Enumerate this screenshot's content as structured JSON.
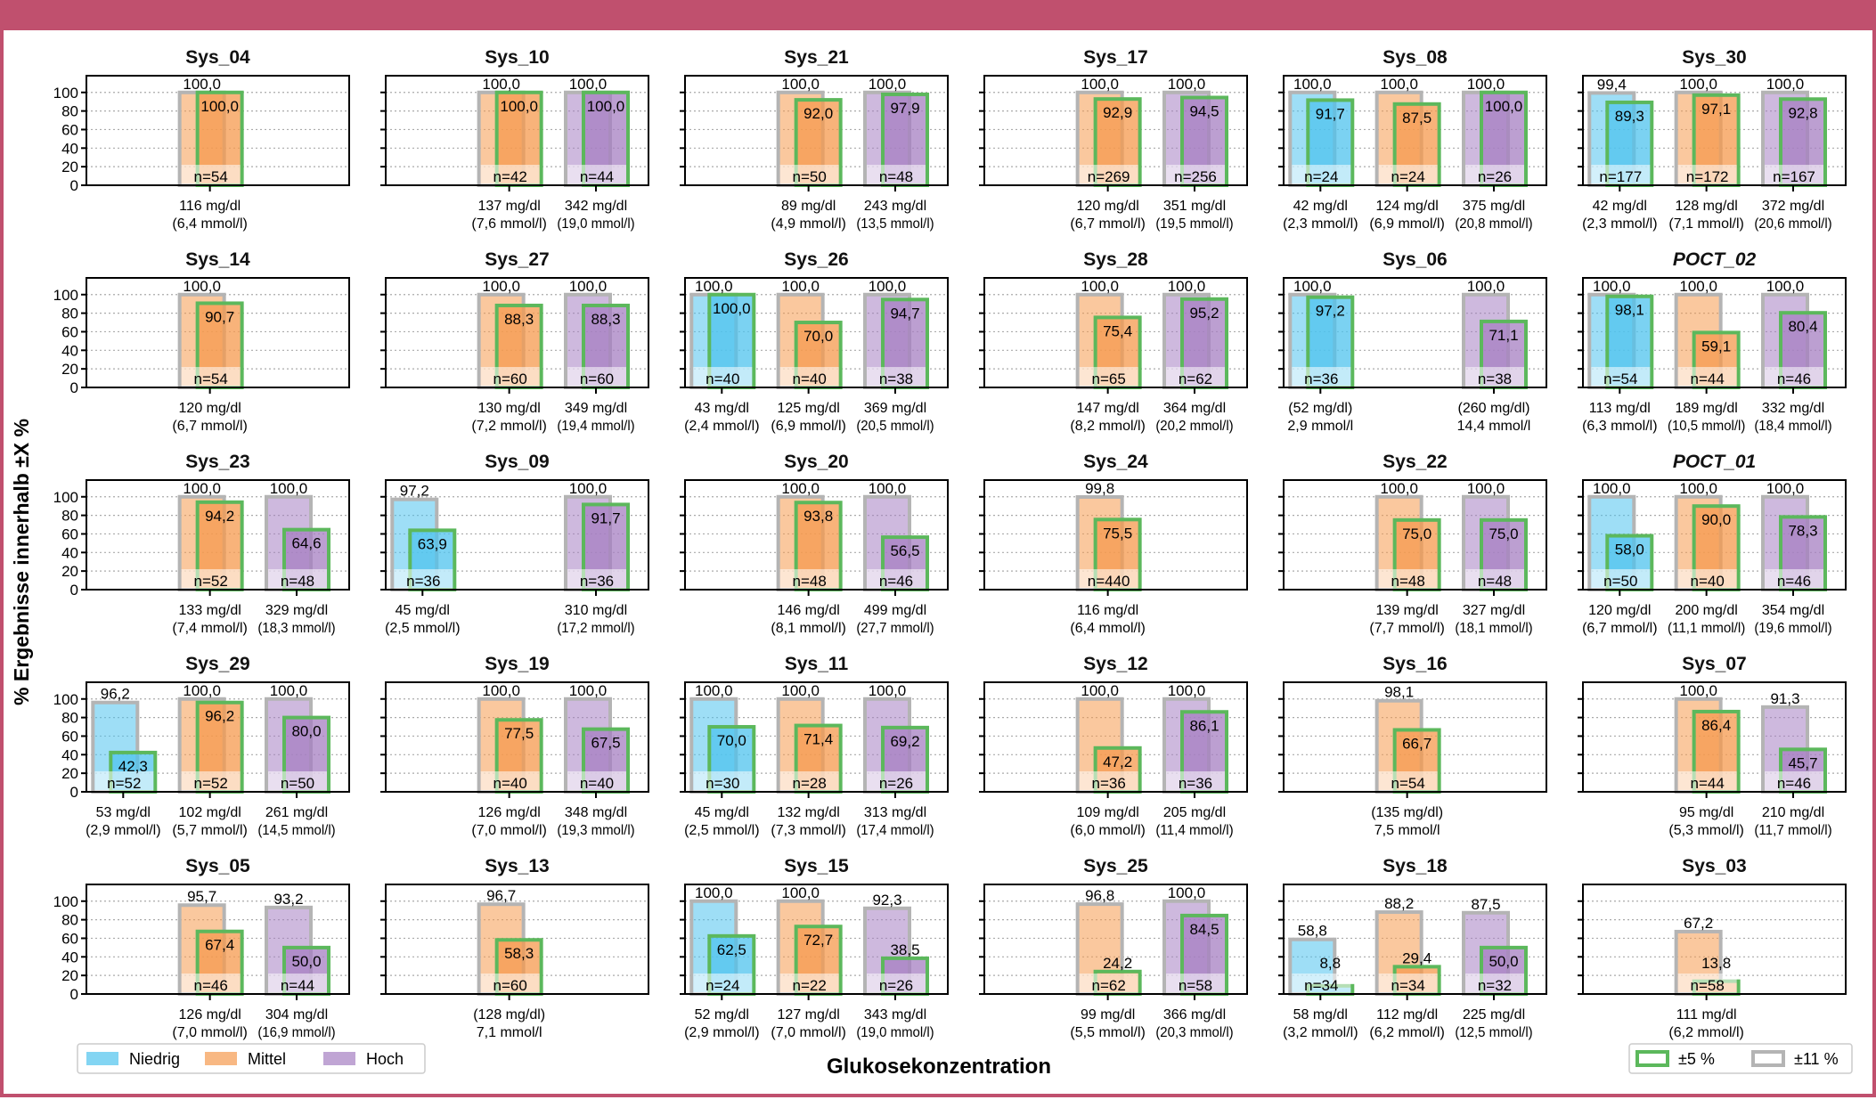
{
  "chart_data": {
    "type": "bar",
    "ylabel": "% Ergebnisse innerhalb ±X %",
    "xlabel": "Glukosekonzentration",
    "ylim": [
      0,
      118
    ],
    "yticks": [
      0,
      20,
      40,
      60,
      80,
      100
    ],
    "grid": "horizontal dotted",
    "categories": [
      "Niedrig",
      "Mittel",
      "Hoch"
    ],
    "category_colors": {
      "Niedrig": "#4fc3ee",
      "Mittel": "#f59a4e",
      "Hoch": "#a57fc2"
    },
    "tolerance_legend": [
      {
        "name": "±5 %",
        "edge_color": "#5cb85c"
      },
      {
        "name": "±11 %",
        "edge_color": "#b4b4b4"
      }
    ],
    "panels": [
      {
        "title": "Sys_04",
        "bars": [
          {
            "category": "Mittel",
            "pct_11": 100.0,
            "pct_5": 100.0,
            "n": "n=54",
            "label": [
              "116 mg/dl",
              "(6,4 mmol/l)"
            ]
          }
        ]
      },
      {
        "title": "Sys_10",
        "bars": [
          {
            "category": "Mittel",
            "pct_11": 100.0,
            "pct_5": 100.0,
            "n": "n=42",
            "label": [
              "137 mg/dl",
              "(7,6 mmol/l)"
            ]
          },
          {
            "category": "Hoch",
            "pct_11": 100.0,
            "pct_5": 100.0,
            "n": "n=44",
            "label": [
              "342 mg/dl",
              "(19,0 mmol/l)"
            ]
          }
        ]
      },
      {
        "title": "Sys_21",
        "bars": [
          {
            "category": "Mittel",
            "pct_11": 100.0,
            "pct_5": 92.0,
            "n": "n=50",
            "label": [
              "89 mg/dl",
              "(4,9 mmol/l)"
            ]
          },
          {
            "category": "Hoch",
            "pct_11": 100.0,
            "pct_5": 97.9,
            "n": "n=48",
            "label": [
              "243 mg/dl",
              "(13,5 mmol/l)"
            ]
          }
        ]
      },
      {
        "title": "Sys_17",
        "bars": [
          {
            "category": "Mittel",
            "pct_11": 100.0,
            "pct_5": 92.9,
            "n": "n=269",
            "label": [
              "120 mg/dl",
              "(6,7 mmol/l)"
            ]
          },
          {
            "category": "Hoch",
            "pct_11": 100.0,
            "pct_5": 94.5,
            "n": "n=256",
            "label": [
              "351 mg/dl",
              "(19,5 mmol/l)"
            ]
          }
        ]
      },
      {
        "title": "Sys_08",
        "bars": [
          {
            "category": "Niedrig",
            "pct_11": 100.0,
            "pct_5": 91.7,
            "n": "n=24",
            "label": [
              "42 mg/dl",
              "(2,3 mmol/l)"
            ]
          },
          {
            "category": "Mittel",
            "pct_11": 100.0,
            "pct_5": 87.5,
            "n": "n=24",
            "label": [
              "124 mg/dl",
              "(6,9 mmol/l)"
            ]
          },
          {
            "category": "Hoch",
            "pct_11": 100.0,
            "pct_5": 100.0,
            "n": "n=26",
            "label": [
              "375 mg/dl",
              "(20,8 mmol/l)"
            ]
          }
        ]
      },
      {
        "title": "Sys_30",
        "bars": [
          {
            "category": "Niedrig",
            "pct_11": 99.4,
            "pct_5": 89.3,
            "n": "n=177",
            "label": [
              "42 mg/dl",
              "(2,3 mmol/l)"
            ]
          },
          {
            "category": "Mittel",
            "pct_11": 100.0,
            "pct_5": 97.1,
            "n": "n=172",
            "label": [
              "128 mg/dl",
              "(7,1 mmol/l)"
            ]
          },
          {
            "category": "Hoch",
            "pct_11": 100.0,
            "pct_5": 92.8,
            "n": "n=167",
            "label": [
              "372 mg/dl",
              "(20,6 mmol/l)"
            ]
          }
        ]
      },
      {
        "title": "Sys_14",
        "bars": [
          {
            "category": "Mittel",
            "pct_11": 100.0,
            "pct_5": 90.7,
            "n": "n=54",
            "label": [
              "120 mg/dl",
              "(6,7 mmol/l)"
            ]
          }
        ]
      },
      {
        "title": "Sys_27",
        "bars": [
          {
            "category": "Mittel",
            "pct_11": 100.0,
            "pct_5": 88.3,
            "n": "n=60",
            "label": [
              "130 mg/dl",
              "(7,2 mmol/l)"
            ]
          },
          {
            "category": "Hoch",
            "pct_11": 100.0,
            "pct_5": 88.3,
            "n": "n=60",
            "label": [
              "349 mg/dl",
              "(19,4 mmol/l)"
            ]
          }
        ]
      },
      {
        "title": "Sys_26",
        "bars": [
          {
            "category": "Niedrig",
            "pct_11": 100.0,
            "pct_5": 100.0,
            "n": "n=40",
            "label": [
              "43 mg/dl",
              "(2,4 mmol/l)"
            ]
          },
          {
            "category": "Mittel",
            "pct_11": 100.0,
            "pct_5": 70.0,
            "n": "n=40",
            "label": [
              "125 mg/dl",
              "(6,9 mmol/l)"
            ]
          },
          {
            "category": "Hoch",
            "pct_11": 100.0,
            "pct_5": 94.7,
            "n": "n=38",
            "label": [
              "369 mg/dl",
              "(20,5 mmol/l)"
            ]
          }
        ]
      },
      {
        "title": "Sys_28",
        "bars": [
          {
            "category": "Mittel",
            "pct_11": 100.0,
            "pct_5": 75.4,
            "n": "n=65",
            "label": [
              "147 mg/dl",
              "(8,2 mmol/l)"
            ]
          },
          {
            "category": "Hoch",
            "pct_11": 100.0,
            "pct_5": 95.2,
            "n": "n=62",
            "label": [
              "364 mg/dl",
              "(20,2 mmol/l)"
            ]
          }
        ]
      },
      {
        "title": "Sys_06",
        "bars": [
          {
            "category": "Niedrig",
            "pct_11": 100.0,
            "pct_5": 97.2,
            "n": "n=36",
            "label": [
              "(52 mg/dl)",
              "2,9 mmol/l"
            ]
          },
          {
            "category": "Hoch",
            "pct_11": 100.0,
            "pct_5": 71.1,
            "n": "n=38",
            "label": [
              "(260 mg/dl)",
              "14,4 mmol/l"
            ]
          }
        ]
      },
      {
        "title": "POCT_02",
        "italic": true,
        "bars": [
          {
            "category": "Niedrig",
            "pct_11": 100.0,
            "pct_5": 98.1,
            "n": "n=54",
            "label": [
              "113 mg/dl",
              "(6,3 mmol/l)"
            ]
          },
          {
            "category": "Mittel",
            "pct_11": 100.0,
            "pct_5": 59.1,
            "n": "n=44",
            "label": [
              "189 mg/dl",
              "(10,5 mmol/l)"
            ]
          },
          {
            "category": "Hoch",
            "pct_11": 100.0,
            "pct_5": 80.4,
            "n": "n=46",
            "label": [
              "332 mg/dl",
              "(18,4 mmol/l)"
            ]
          }
        ]
      },
      {
        "title": "Sys_23",
        "bars": [
          {
            "category": "Mittel",
            "pct_11": 100.0,
            "pct_5": 94.2,
            "n": "n=52",
            "label": [
              "133 mg/dl",
              "(7,4 mmol/l)"
            ]
          },
          {
            "category": "Hoch",
            "pct_11": 100.0,
            "pct_5": 64.6,
            "n": "n=48",
            "label": [
              "329 mg/dl",
              "(18,3 mmol/l)"
            ]
          }
        ]
      },
      {
        "title": "Sys_09",
        "bars": [
          {
            "category": "Niedrig",
            "pct_11": 97.2,
            "pct_5": 63.9,
            "n": "n=36",
            "label": [
              "45 mg/dl",
              "(2,5 mmol/l)"
            ]
          },
          {
            "category": "Hoch",
            "pct_11": 100.0,
            "pct_5": 91.7,
            "n": "n=36",
            "label": [
              "310 mg/dl",
              "(17,2 mmol/l)"
            ]
          }
        ]
      },
      {
        "title": "Sys_20",
        "bars": [
          {
            "category": "Mittel",
            "pct_11": 100.0,
            "pct_5": 93.8,
            "n": "n=48",
            "label": [
              "146 mg/dl",
              "(8,1 mmol/l)"
            ]
          },
          {
            "category": "Hoch",
            "pct_11": 100.0,
            "pct_5": 56.5,
            "n": "n=46",
            "label": [
              "499 mg/dl",
              "(27,7 mmol/l)"
            ]
          }
        ]
      },
      {
        "title": "Sys_24",
        "bars": [
          {
            "category": "Mittel",
            "pct_11": 99.8,
            "pct_5": 75.5,
            "n": "n=440",
            "label": [
              "116 mg/dl",
              "(6,4 mmol/l)"
            ]
          }
        ]
      },
      {
        "title": "Sys_22",
        "bars": [
          {
            "category": "Mittel",
            "pct_11": 100.0,
            "pct_5": 75.0,
            "n": "n=48",
            "label": [
              "139 mg/dl",
              "(7,7 mmol/l)"
            ]
          },
          {
            "category": "Hoch",
            "pct_11": 100.0,
            "pct_5": 75.0,
            "n": "n=48",
            "label": [
              "327 mg/dl",
              "(18,1 mmol/l)"
            ]
          }
        ]
      },
      {
        "title": "POCT_01",
        "italic": true,
        "bars": [
          {
            "category": "Niedrig",
            "pct_11": 100.0,
            "pct_5": 58.0,
            "n": "n=50",
            "label": [
              "120 mg/dl",
              "(6,7 mmol/l)"
            ]
          },
          {
            "category": "Mittel",
            "pct_11": 100.0,
            "pct_5": 90.0,
            "n": "n=40",
            "label": [
              "200 mg/dl",
              "(11,1 mmol/l)"
            ]
          },
          {
            "category": "Hoch",
            "pct_11": 100.0,
            "pct_5": 78.3,
            "n": "n=46",
            "label": [
              "354 mg/dl",
              "(19,6 mmol/l)"
            ]
          }
        ]
      },
      {
        "title": "Sys_29",
        "bars": [
          {
            "category": "Niedrig",
            "pct_11": 96.2,
            "pct_5": 42.3,
            "n": "n=52",
            "label": [
              "53 mg/dl",
              "(2,9 mmol/l)"
            ]
          },
          {
            "category": "Mittel",
            "pct_11": 100.0,
            "pct_5": 96.2,
            "n": "n=52",
            "label": [
              "102 mg/dl",
              "(5,7 mmol/l)"
            ]
          },
          {
            "category": "Hoch",
            "pct_11": 100.0,
            "pct_5": 80.0,
            "n": "n=50",
            "label": [
              "261 mg/dl",
              "(14,5 mmol/l)"
            ]
          }
        ]
      },
      {
        "title": "Sys_19",
        "bars": [
          {
            "category": "Mittel",
            "pct_11": 100.0,
            "pct_5": 77.5,
            "n": "n=40",
            "label": [
              "126 mg/dl",
              "(7,0 mmol/l)"
            ]
          },
          {
            "category": "Hoch",
            "pct_11": 100.0,
            "pct_5": 67.5,
            "n": "n=40",
            "label": [
              "348 mg/dl",
              "(19,3 mmol/l)"
            ]
          }
        ]
      },
      {
        "title": "Sys_11",
        "bars": [
          {
            "category": "Niedrig",
            "pct_11": 100.0,
            "pct_5": 70.0,
            "n": "n=30",
            "label": [
              "45 mg/dl",
              "(2,5 mmol/l)"
            ]
          },
          {
            "category": "Mittel",
            "pct_11": 100.0,
            "pct_5": 71.4,
            "n": "n=28",
            "label": [
              "132 mg/dl",
              "(7,3 mmol/l)"
            ]
          },
          {
            "category": "Hoch",
            "pct_11": 100.0,
            "pct_5": 69.2,
            "n": "n=26",
            "label": [
              "313 mg/dl",
              "(17,4 mmol/l)"
            ]
          }
        ]
      },
      {
        "title": "Sys_12",
        "bars": [
          {
            "category": "Mittel",
            "pct_11": 100.0,
            "pct_5": 47.2,
            "n": "n=36",
            "label": [
              "109 mg/dl",
              "(6,0 mmol/l)"
            ]
          },
          {
            "category": "Hoch",
            "pct_11": 100.0,
            "pct_5": 86.1,
            "n": "n=36",
            "label": [
              "205 mg/dl",
              "(11,4 mmol/l)"
            ]
          }
        ]
      },
      {
        "title": "Sys_16",
        "bars": [
          {
            "category": "Mittel",
            "pct_11": 98.1,
            "pct_5": 66.7,
            "n": "n=54",
            "label": [
              "(135 mg/dl)",
              "7,5 mmol/l"
            ]
          }
        ]
      },
      {
        "title": "Sys_07",
        "bars": [
          {
            "category": "Mittel",
            "pct_11": 100.0,
            "pct_5": 86.4,
            "n": "n=44",
            "label": [
              "95 mg/dl",
              "(5,3 mmol/l)"
            ]
          },
          {
            "category": "Hoch",
            "pct_11": 91.3,
            "pct_5": 45.7,
            "n": "n=46",
            "label": [
              "210 mg/dl",
              "(11,7 mmol/l)"
            ]
          }
        ]
      },
      {
        "title": "Sys_05",
        "bars": [
          {
            "category": "Mittel",
            "pct_11": 95.7,
            "pct_5": 67.4,
            "n": "n=46",
            "label": [
              "126 mg/dl",
              "(7,0 mmol/l)"
            ]
          },
          {
            "category": "Hoch",
            "pct_11": 93.2,
            "pct_5": 50.0,
            "n": "n=44",
            "label": [
              "304 mg/dl",
              "(16,9 mmol/l)"
            ]
          }
        ]
      },
      {
        "title": "Sys_13",
        "bars": [
          {
            "category": "Mittel",
            "pct_11": 96.7,
            "pct_5": 58.3,
            "n": "n=60",
            "label": [
              "(128 mg/dl)",
              "7,1 mmol/l"
            ]
          }
        ]
      },
      {
        "title": "Sys_15",
        "bars": [
          {
            "category": "Niedrig",
            "pct_11": 100.0,
            "pct_5": 62.5,
            "n": "n=24",
            "label": [
              "52 mg/dl",
              "(2,9 mmol/l)"
            ]
          },
          {
            "category": "Mittel",
            "pct_11": 100.0,
            "pct_5": 72.7,
            "n": "n=22",
            "label": [
              "127 mg/dl",
              "(7,0 mmol/l)"
            ]
          },
          {
            "category": "Hoch",
            "pct_11": 92.3,
            "pct_5": 38.5,
            "n": "n=26",
            "label": [
              "343 mg/dl",
              "(19,0 mmol/l)"
            ]
          }
        ]
      },
      {
        "title": "Sys_25",
        "bars": [
          {
            "category": "Mittel",
            "pct_11": 96.8,
            "pct_5": 24.2,
            "n": "n=62",
            "label": [
              "99 mg/dl",
              "(5,5 mmol/l)"
            ]
          },
          {
            "category": "Hoch",
            "pct_11": 100.0,
            "pct_5": 84.5,
            "n": "n=58",
            "label": [
              "366 mg/dl",
              "(20,3 mmol/l)"
            ]
          }
        ]
      },
      {
        "title": "Sys_18",
        "bars": [
          {
            "category": "Niedrig",
            "pct_11": 58.8,
            "pct_5": 8.8,
            "n": "n=34",
            "label": [
              "58 mg/dl",
              "(3,2 mmol/l)"
            ]
          },
          {
            "category": "Mittel",
            "pct_11": 88.2,
            "pct_5": 29.4,
            "n": "n=34",
            "label": [
              "112 mg/dl",
              "(6,2 mmol/l)"
            ]
          },
          {
            "category": "Hoch",
            "pct_11": 87.5,
            "pct_5": 50.0,
            "n": "n=32",
            "label": [
              "225 mg/dl",
              "(12,5 mmol/l)"
            ]
          }
        ]
      },
      {
        "title": "Sys_03",
        "bars": [
          {
            "category": "Mittel",
            "pct_11": 67.2,
            "pct_5": 13.8,
            "n": "n=58",
            "label": [
              "111 mg/dl",
              "(6,2 mmol/l)"
            ]
          }
        ]
      }
    ]
  }
}
